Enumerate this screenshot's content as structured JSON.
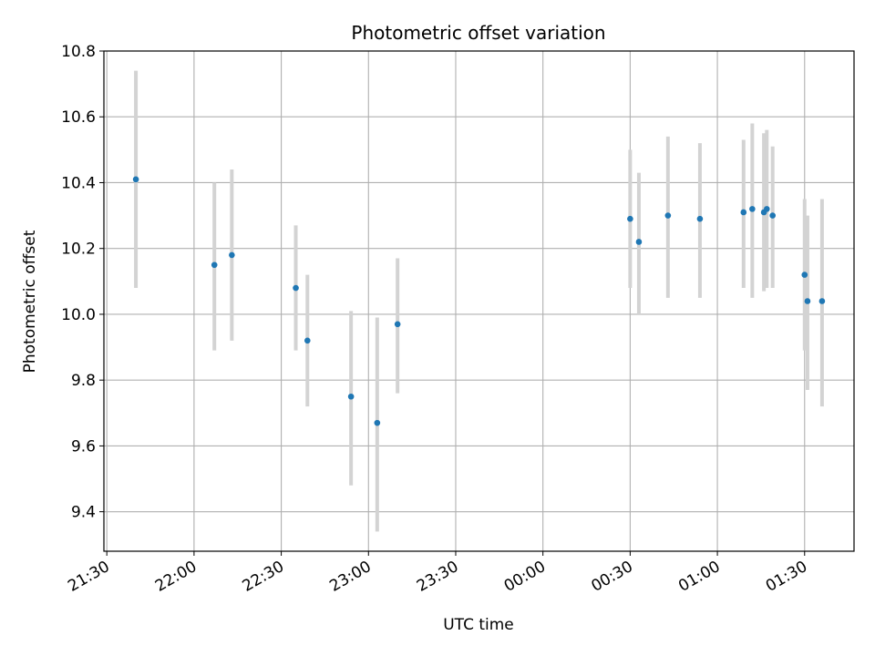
{
  "chart_data": {
    "type": "scatter",
    "title": "Photometric offset variation",
    "xlabel": "UTC time",
    "ylabel": "Photometric offset",
    "x_is_time": true,
    "x_ticks": [
      "21:30",
      "22:00",
      "22:30",
      "23:00",
      "23:30",
      "00:00",
      "00:30",
      "01:00",
      "01:30"
    ],
    "y_ticks": [
      "9.4",
      "9.6",
      "9.8",
      "10.0",
      "10.2",
      "10.4",
      "10.6",
      "10.8"
    ],
    "xlim": [
      "21:29",
      "01:47"
    ],
    "ylim": [
      9.28,
      10.8
    ],
    "grid": true,
    "colors": {
      "point": "#1f77b4",
      "errorbar": "#d3d3d3",
      "grid": "#b0b0b0"
    },
    "points": [
      {
        "x": "21:40",
        "y": 10.41,
        "ylow": 10.08,
        "yhigh": 10.74
      },
      {
        "x": "22:07",
        "y": 10.15,
        "ylow": 9.89,
        "yhigh": 10.4
      },
      {
        "x": "22:13",
        "y": 10.18,
        "ylow": 9.92,
        "yhigh": 10.44
      },
      {
        "x": "22:35",
        "y": 10.08,
        "ylow": 9.89,
        "yhigh": 10.27
      },
      {
        "x": "22:39",
        "y": 9.92,
        "ylow": 9.72,
        "yhigh": 10.12
      },
      {
        "x": "22:54",
        "y": 9.75,
        "ylow": 9.48,
        "yhigh": 10.01
      },
      {
        "x": "23:03",
        "y": 9.67,
        "ylow": 9.34,
        "yhigh": 9.99
      },
      {
        "x": "23:10",
        "y": 9.97,
        "ylow": 9.76,
        "yhigh": 10.17
      },
      {
        "x": "00:30",
        "y": 10.29,
        "ylow": 10.08,
        "yhigh": 10.5
      },
      {
        "x": "00:33",
        "y": 10.22,
        "ylow": 10.0,
        "yhigh": 10.43
      },
      {
        "x": "00:43",
        "y": 10.3,
        "ylow": 10.05,
        "yhigh": 10.54
      },
      {
        "x": "00:54",
        "y": 10.29,
        "ylow": 10.05,
        "yhigh": 10.52
      },
      {
        "x": "01:09",
        "y": 10.31,
        "ylow": 10.08,
        "yhigh": 10.53
      },
      {
        "x": "01:12",
        "y": 10.32,
        "ylow": 10.05,
        "yhigh": 10.58
      },
      {
        "x": "01:16",
        "y": 10.31,
        "ylow": 10.07,
        "yhigh": 10.55
      },
      {
        "x": "01:17",
        "y": 10.32,
        "ylow": 10.08,
        "yhigh": 10.56
      },
      {
        "x": "01:19",
        "y": 10.3,
        "ylow": 10.08,
        "yhigh": 10.51
      },
      {
        "x": "01:30",
        "y": 10.12,
        "ylow": 9.89,
        "yhigh": 10.35
      },
      {
        "x": "01:31",
        "y": 10.04,
        "ylow": 9.77,
        "yhigh": 10.3
      },
      {
        "x": "01:36",
        "y": 10.04,
        "ylow": 9.72,
        "yhigh": 10.35
      }
    ]
  }
}
